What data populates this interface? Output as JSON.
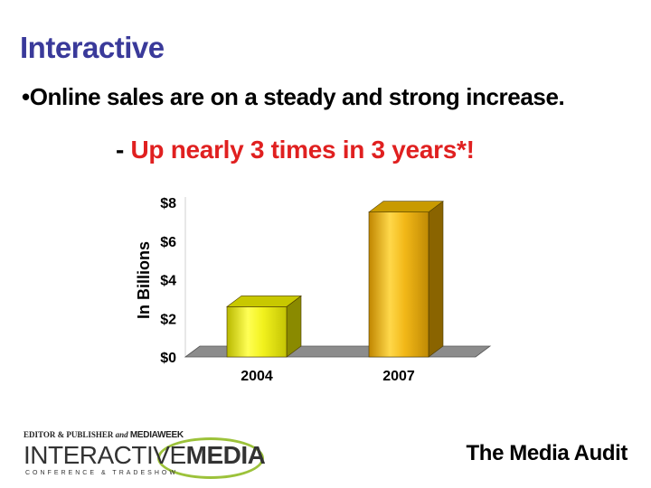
{
  "title": "Interactive",
  "bullet": "•Online sales are on a steady and strong increase.",
  "subtitle": {
    "dash": "- ",
    "text": "Up nearly 3 times in 3 years*!"
  },
  "chart_data": {
    "type": "bar",
    "categories": [
      "2004",
      "2007"
    ],
    "values": [
      2.6,
      7.5
    ],
    "ylabel": "In Billions",
    "xlabel": "",
    "ylim": [
      0,
      8
    ],
    "yticks": [
      "$0",
      "$2",
      "$4",
      "$6",
      "$8"
    ],
    "ytick_values": [
      0,
      2,
      4,
      6,
      8
    ],
    "grid": false,
    "colors": [
      "#e8e81a",
      "#e8b818"
    ]
  },
  "logo": {
    "top_left": "EDITOR & PUBLISHER",
    "top_and": "and",
    "top_right": "MEDIAWEEK",
    "main_a": "INTERACTIVE",
    "main_b": "MEDIA",
    "tagline": "CONFERENCE & TRADESHOW",
    "accent": "#9cc23a"
  },
  "source": "The Media Audit"
}
